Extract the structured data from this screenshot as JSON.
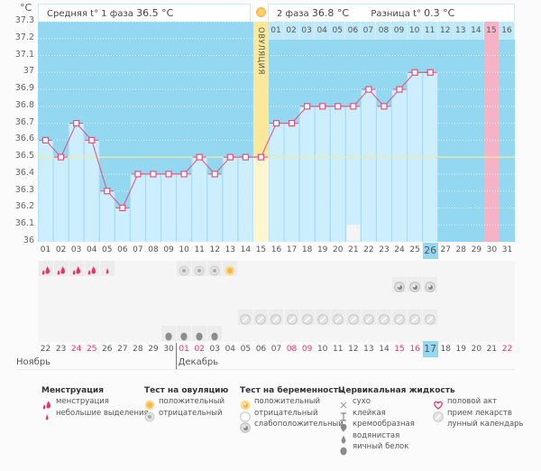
{
  "header": {
    "unit": "°C",
    "phase1_label": "Средняя t° 1 фаза",
    "phase1_value": "36.5 °C",
    "phase2_label": "2 фаза",
    "phase2_value": "36.8 °C",
    "diff_label": "Разница t°",
    "diff_value": "0.3 °C",
    "ovulation_label": "ОВУЛЯЦИЯ"
  },
  "colors": {
    "plot_bg": "#93d7f1",
    "bar_fill": "#cdeefc",
    "line": "#e4507a",
    "ovulation": "#fbe89a",
    "ovulation_light": "#fdf6cf",
    "pink_day": "#f7b3c6",
    "baseline": "#f3ec9a",
    "today": "#93d7f1"
  },
  "chart_data": {
    "type": "line",
    "title": "",
    "ylabel": "°C",
    "ylim": [
      36,
      37.3
    ],
    "yticks": [
      "36",
      "36.1",
      "36.2",
      "36.3",
      "36.4",
      "36.5",
      "36.6",
      "36.7",
      "36.8",
      "36.9",
      "37",
      "37.1",
      "37.2",
      "37.3"
    ],
    "cycle_days": [
      "01",
      "02",
      "03",
      "04",
      "05",
      "06",
      "07",
      "08",
      "09",
      "10",
      "11",
      "12",
      "13",
      "14",
      "15",
      "16",
      "17",
      "18",
      "19",
      "20",
      "21",
      "22",
      "23",
      "24",
      "25",
      "26",
      "27",
      "28",
      "29",
      "30",
      "31"
    ],
    "values": [
      36.6,
      36.5,
      36.7,
      36.6,
      36.3,
      36.2,
      36.4,
      36.4,
      36.4,
      36.4,
      36.5,
      36.4,
      36.5,
      36.5,
      36.5,
      36.7,
      36.7,
      36.8,
      36.8,
      36.8,
      36.8,
      36.9,
      36.8,
      36.9,
      37.0,
      37.0
    ],
    "coverline": 36.5,
    "ovulation_day": 15,
    "current_day": 26,
    "predicted_period_day": 30,
    "lunar_day": 21,
    "next_cycle_days": [
      "01",
      "02",
      "03",
      "04",
      "05",
      "06",
      "07",
      "08",
      "09",
      "10",
      "11",
      "12",
      "13",
      "14",
      "15",
      "16"
    ],
    "next_cycle_highlight": "15",
    "calendar_dates": [
      "22",
      "23",
      "24",
      "25",
      "26",
      "27",
      "28",
      "29",
      "30",
      "01",
      "02",
      "03",
      "04",
      "05",
      "06",
      "07",
      "08",
      "09",
      "10",
      "11",
      "12",
      "13",
      "14",
      "15",
      "16",
      "17",
      "18",
      "19",
      "20",
      "21",
      "22"
    ],
    "calendar_weekend_indices": [
      2,
      3,
      9,
      10,
      16,
      17,
      23,
      24,
      30
    ],
    "today_date_index": 25,
    "months": [
      "Ноябрь",
      "Декабрь"
    ],
    "month_break_index": 9
  },
  "markers": {
    "menstruation": [
      1,
      2,
      3,
      4
    ],
    "spotting": [
      5
    ],
    "ovulation_test_negative": [
      10,
      11,
      12
    ],
    "ovulation_test_positive": [
      13
    ],
    "pregnancy_test_weak": [
      24,
      25,
      26
    ],
    "medication": [
      14,
      15,
      16,
      17,
      18,
      19,
      20,
      21,
      22,
      23,
      24,
      25,
      26
    ],
    "egg_white": [
      9,
      10,
      11,
      12
    ]
  },
  "legend": {
    "groups": [
      {
        "title": "Менструация",
        "items": [
          {
            "icon": "menstruation-drops-icon",
            "label": "менструация"
          },
          {
            "icon": "small-drop-icon",
            "label": "небольшие выделения"
          }
        ]
      },
      {
        "title": "Тест на овуляцию",
        "items": [
          {
            "icon": "sun-positive-icon",
            "label": "положительный"
          },
          {
            "icon": "gray-circle-negative-icon",
            "label": "отрицательный"
          }
        ]
      },
      {
        "title": "Тест на беременность",
        "items": [
          {
            "icon": "pregnancy-positive-icon",
            "label": "положительный"
          },
          {
            "icon": "pregnancy-negative-icon",
            "label": "отрицательный"
          },
          {
            "icon": "pregnancy-weak-icon",
            "label": "слабоположительный"
          }
        ]
      },
      {
        "title": "Цервикальная жидкость",
        "items": [
          {
            "icon": "cross-dry-icon",
            "label": "сухо"
          },
          {
            "icon": "sticky-icon",
            "label": "клейкая"
          },
          {
            "icon": "creamy-icon",
            "label": "кремообразная"
          },
          {
            "icon": "watery-drop-icon",
            "label": "водянистая"
          },
          {
            "icon": "egg-white-icon",
            "label": "яичный белок"
          }
        ]
      },
      {
        "title": "",
        "items": [
          {
            "icon": "heart-icon",
            "label": "половой акт"
          },
          {
            "icon": "pill-icon",
            "label": "прием лекарств"
          },
          {
            "icon": "moon-icon",
            "label": "лунный календарь"
          }
        ]
      }
    ]
  }
}
